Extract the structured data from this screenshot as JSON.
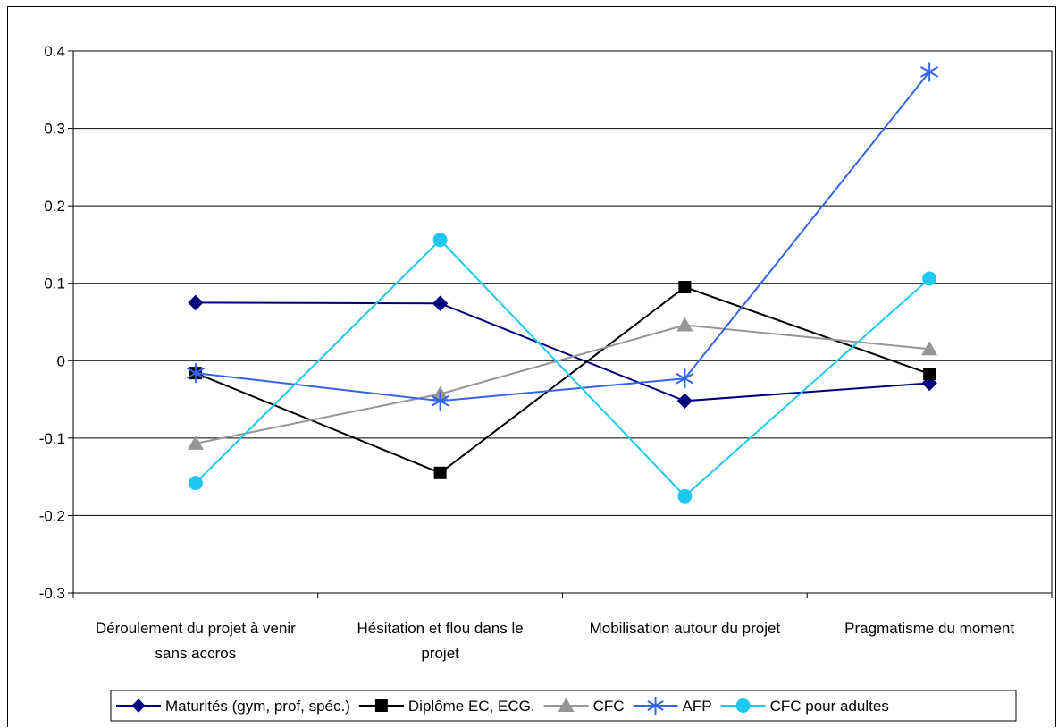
{
  "chart_data": {
    "type": "line",
    "categories": [
      [
        "Déroulement du projet à venir",
        "sans accros"
      ],
      [
        "Hésitation et flou dans le",
        "projet"
      ],
      [
        "Mobilisation autour du projet"
      ],
      [
        "Pragmatisme du moment"
      ]
    ],
    "ylim": [
      -0.3,
      0.4
    ],
    "yticks": [
      0.4,
      0.3,
      0.2,
      0.1,
      0,
      -0.1,
      -0.2,
      -0.3
    ],
    "ytick_labels": [
      "0.4",
      "0.3",
      "0.2",
      "0.1",
      "0",
      "-0.1",
      "-0.2",
      "-0.3"
    ],
    "grid": "horizontal",
    "legend_position": "bottom",
    "series": [
      {
        "name": "Maturités (gym, prof, spéc.)",
        "color": "#00007F",
        "marker": "diamond",
        "values": [
          0.075,
          0.074,
          -0.052,
          -0.029
        ]
      },
      {
        "name": "Diplôme EC, ECG.",
        "color": "#000000",
        "marker": "square",
        "values": [
          -0.016,
          -0.145,
          0.095,
          -0.017
        ]
      },
      {
        "name": "CFC",
        "color": "#969696",
        "marker": "triangle",
        "values": [
          -0.107,
          -0.043,
          0.046,
          0.015
        ]
      },
      {
        "name": "AFP",
        "color": "#3366E6",
        "marker": "star",
        "values": [
          -0.016,
          -0.052,
          -0.023,
          0.373
        ]
      },
      {
        "name": "CFC pour adultes",
        "color": "#1EC8F0",
        "marker": "circle",
        "values": [
          -0.158,
          0.156,
          -0.175,
          0.106
        ]
      }
    ]
  }
}
